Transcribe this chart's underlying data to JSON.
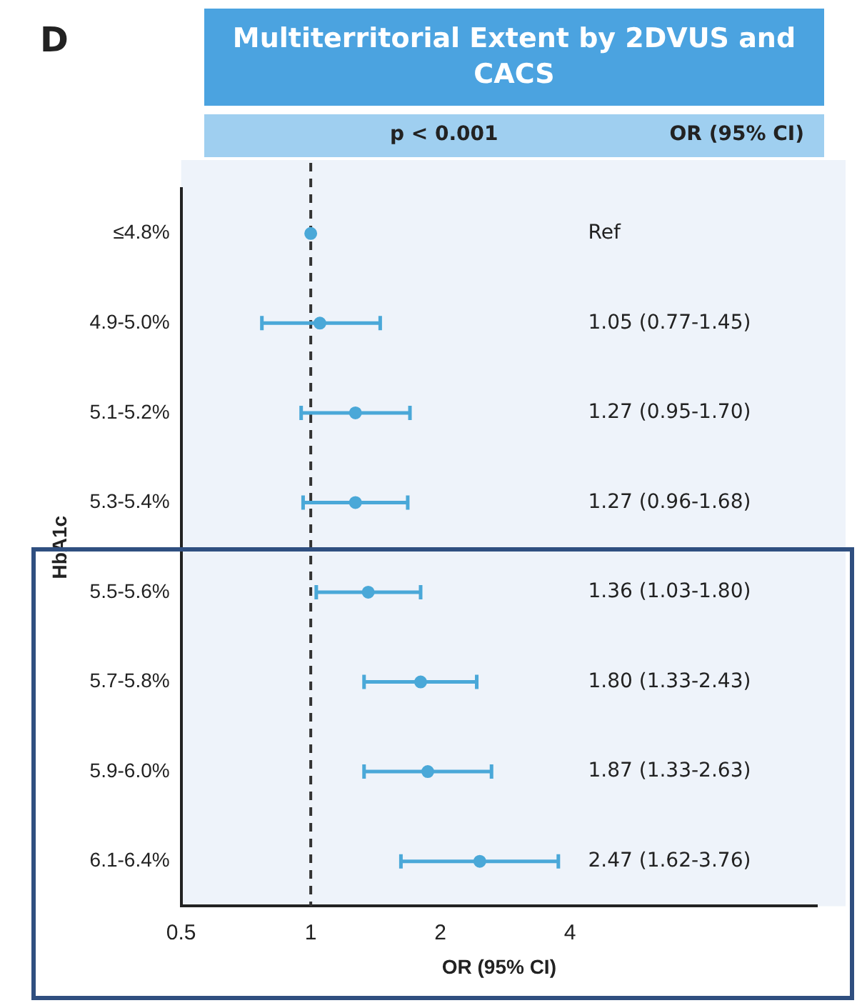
{
  "chart_data": {
    "type": "scatter",
    "orientation": "horizontal",
    "title": "Multiterritorial Extent by 2DVUS and CACS",
    "xlabel": "OR (95% CI)",
    "ylabel": "HbA1c",
    "annotations": [
      "D",
      "p < 0.001",
      "OR (95% CI)",
      "Ref",
      "1.05 (0.77-1.45)",
      "1.27 (0.95-1.70)",
      "1.27 (0.96-1.68)",
      "1.36 (1.03-1.80)",
      "1.80 (1.33-2.43)",
      "1.87 (1.33-2.63)",
      "2.47 (1.62-3.76)"
    ],
    "categories": [
      "≤4.8%",
      "4.9-5.0%",
      "5.1-5.2%",
      "5.3-5.4%",
      "5.5-5.6%",
      "5.7-5.8%",
      "5.9-6.0%",
      "6.1-6.4%"
    ],
    "values": [
      1,
      1.05,
      1.27,
      1.27,
      1.36,
      1.8,
      1.87,
      2.47
    ],
    "errors": [
      null,
      [
        0.77,
        1.45
      ],
      [
        0.95,
        1.7
      ],
      [
        0.96,
        1.68
      ],
      [
        1.03,
        1.8
      ],
      [
        1.33,
        2.43
      ],
      [
        1.33,
        2.63
      ],
      [
        1.62,
        3.76
      ]
    ],
    "color": "#4aa8d8",
    "marker": "circle",
    "log": "x",
    "xlim": [
      0.5,
      15
    ],
    "xticks": [
      0.5,
      1,
      2,
      4
    ],
    "ref_lines": [
      {
        "axis": "x",
        "value": 1,
        "line_style": "dashed",
        "color": "#333333"
      }
    ],
    "grid": false,
    "legend": false
  }
}
